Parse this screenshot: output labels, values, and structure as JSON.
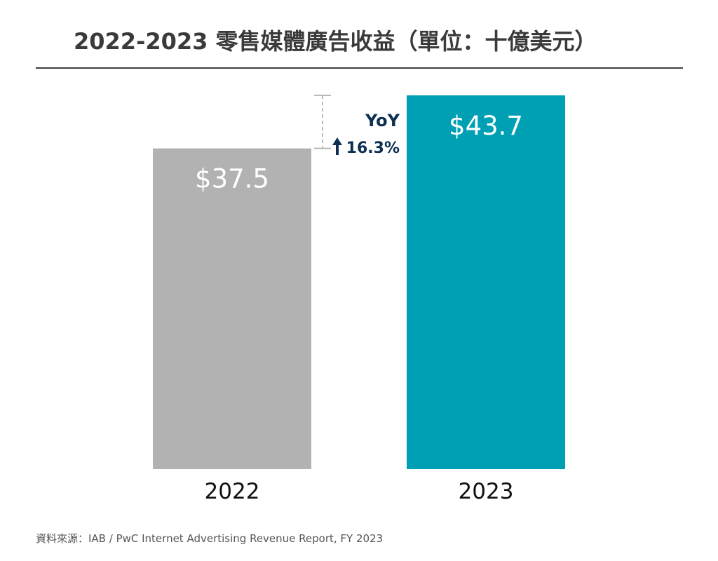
{
  "title": "2022-2023 零售媒體廣告收益（單位：十億美元）",
  "source": "資料來源：IAB / PwC Internet Advertising Revenue Report, FY 2023",
  "chart_data": {
    "type": "bar",
    "categories": [
      "2022",
      "2023"
    ],
    "values": [
      37.5,
      43.7
    ],
    "value_labels": [
      "$37.5",
      "$43.7"
    ],
    "colors": [
      "#b1b2b1",
      "#00a0b4"
    ],
    "ylim": [
      0,
      43.7
    ],
    "grid": false,
    "annotation": {
      "title": "YoY",
      "value": "16.3%",
      "direction": "up",
      "color": "#0d2f52"
    }
  }
}
